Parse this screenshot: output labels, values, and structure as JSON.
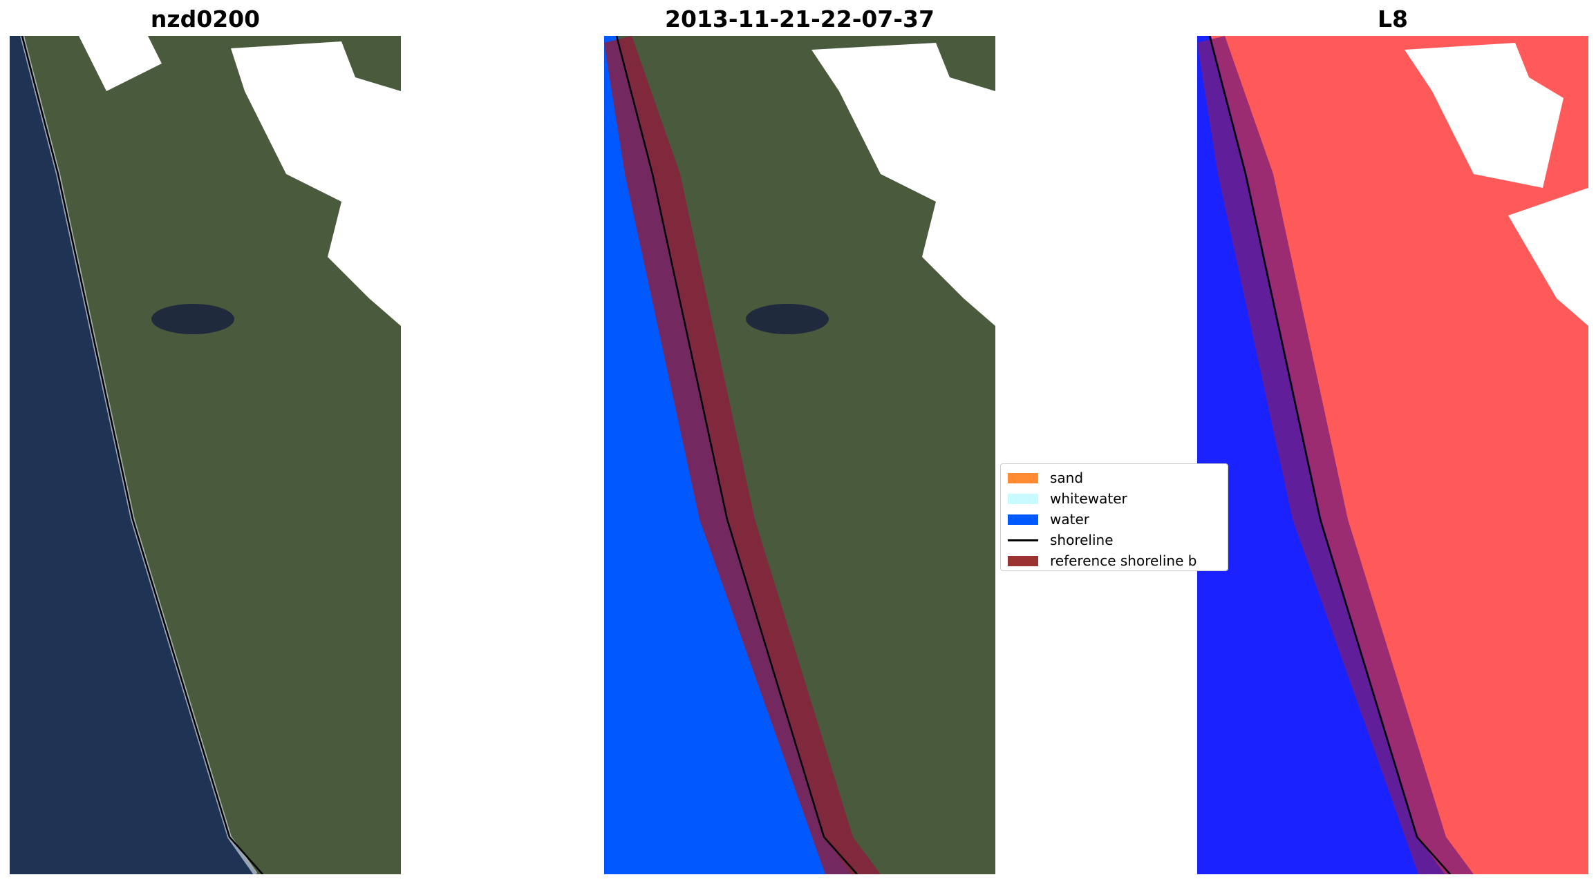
{
  "figure": {
    "panels": [
      {
        "title": "nzd0200",
        "content": "satellite-rgb"
      },
      {
        "title": "2013-11-21-22-07-37",
        "content": "classified-with-buffer"
      },
      {
        "title": "L8",
        "content": "water-index-with-buffer"
      }
    ],
    "legend": {
      "items": [
        {
          "label": "sand",
          "color": "#ff8c33",
          "kind": "patch"
        },
        {
          "label": "whitewater",
          "color": "#c8faff",
          "kind": "patch"
        },
        {
          "label": "water",
          "color": "#0059ff",
          "kind": "patch"
        },
        {
          "label": "shoreline",
          "color": "#000000",
          "kind": "line"
        },
        {
          "label": "reference shoreline b",
          "color": "#9b3232",
          "kind": "patch"
        }
      ]
    },
    "colors": {
      "ocean": "#1f3354",
      "land": "#4a5a3c",
      "water_class": "#0059ff",
      "buffer": "#8c1e3c",
      "index_water": "#1a22ff",
      "index_land": "#ff5a5a",
      "shoreline": "#000000"
    }
  }
}
